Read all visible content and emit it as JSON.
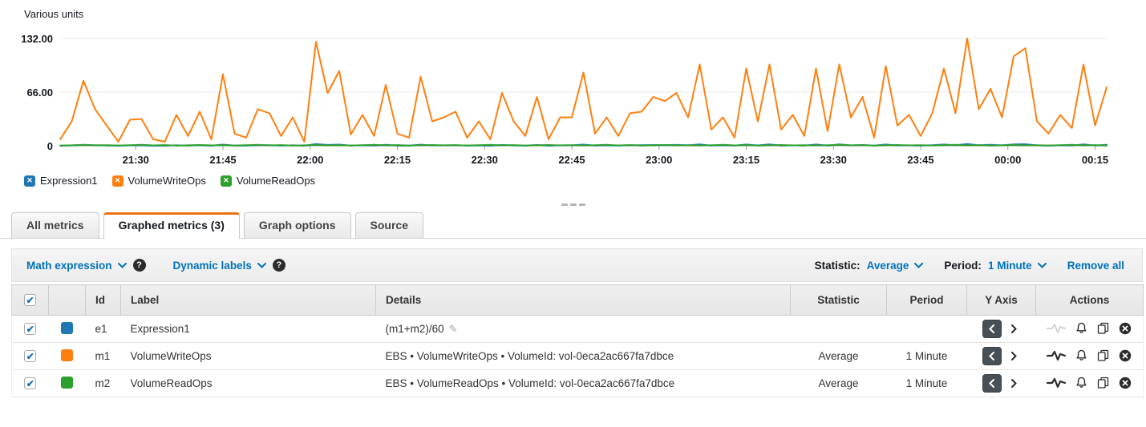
{
  "chart": {
    "units_label": "Various units"
  },
  "chart_data": {
    "type": "line",
    "title": "",
    "ylabel": "Various units",
    "ylim": [
      0,
      145
    ],
    "grid": true,
    "legend_position": "bottom-left",
    "y_gridlines": [
      0,
      66,
      132
    ],
    "y_tick_labels": [
      "0",
      "66.00",
      "132.00"
    ],
    "x_total_minutes": 180,
    "sample_interval_minutes": 2,
    "x_ticks": [
      {
        "minute": 13,
        "label": "21:30"
      },
      {
        "minute": 28,
        "label": "21:45"
      },
      {
        "minute": 43,
        "label": "22:00"
      },
      {
        "minute": 58,
        "label": "22:15"
      },
      {
        "minute": 73,
        "label": "22:30"
      },
      {
        "minute": 88,
        "label": "22:45"
      },
      {
        "minute": 103,
        "label": "23:00"
      },
      {
        "minute": 118,
        "label": "23:15"
      },
      {
        "minute": 133,
        "label": "23:30"
      },
      {
        "minute": 148,
        "label": "23:45"
      },
      {
        "minute": 163,
        "label": "00:00"
      },
      {
        "minute": 178,
        "label": "00:15"
      }
    ],
    "series": [
      {
        "name": "Expression1",
        "color": "#1f77b4",
        "values": [
          0.1,
          0.5,
          1.3,
          0.8,
          0.4,
          0.1,
          0.5,
          0.6,
          0.1,
          0.1,
          0.6,
          0.2,
          0.7,
          0.1,
          1.5,
          0.3,
          0.2,
          0.8,
          0.7,
          0.2,
          0.6,
          0.1,
          2.1,
          1.1,
          1.5,
          0.2,
          0.6,
          0.2,
          1.3,
          0.3,
          0.2,
          1.4,
          0.5,
          0.6,
          0.7,
          0.2,
          0.5,
          0.1,
          1.1,
          0.5,
          0.2,
          1.0,
          0.1,
          0.6,
          0.6,
          1.5,
          0.3,
          0.6,
          0.2,
          0.7,
          0.7,
          1.0,
          0.9,
          1.1,
          0.6,
          1.7,
          0.3,
          0.6,
          0.2,
          1.6,
          0.5,
          1.7,
          0.3,
          0.6,
          0.2,
          1.6,
          0.3,
          1.7,
          0.6,
          1.0,
          0.2,
          1.6,
          0.4,
          0.6,
          0.2,
          0.7,
          1.6,
          0.7,
          2.2,
          0.8,
          1.2,
          0.6,
          1.8,
          2.0,
          0.5,
          0.3,
          0.6,
          0.4,
          1.7,
          0.4,
          1.2
        ]
      },
      {
        "name": "VolumeWriteOps",
        "color": "#ff7f0e",
        "values": [
          8,
          30,
          80,
          45,
          25,
          5,
          32,
          33,
          8,
          5,
          38,
          12,
          42,
          8,
          88,
          15,
          10,
          45,
          40,
          12,
          35,
          5,
          128,
          65,
          92,
          14,
          38,
          12,
          75,
          15,
          10,
          85,
          30,
          35,
          42,
          10,
          30,
          8,
          65,
          30,
          12,
          60,
          8,
          35,
          35,
          90,
          15,
          35,
          12,
          40,
          42,
          60,
          55,
          65,
          35,
          100,
          20,
          35,
          10,
          95,
          30,
          100,
          20,
          38,
          12,
          95,
          18,
          100,
          35,
          60,
          10,
          98,
          25,
          38,
          12,
          40,
          95,
          40,
          132,
          45,
          70,
          35,
          110,
          120,
          30,
          15,
          38,
          22,
          100,
          25,
          72
        ]
      },
      {
        "name": "VolumeReadOps",
        "color": "#2ca02c",
        "values": [
          0.3,
          0.6,
          1.0,
          0.5,
          0.8,
          0.4,
          0.7,
          1.2,
          0.5,
          0.9,
          0.3,
          0.6,
          1.0,
          0.5,
          0.8,
          0.4,
          0.7,
          1.2,
          0.5,
          0.9,
          0.3,
          0.6,
          1.0,
          0.5,
          0.8,
          0.4,
          0.7,
          1.2,
          0.5,
          0.9,
          0.3,
          0.6,
          1.0,
          0.5,
          0.8,
          0.4,
          0.7,
          1.2,
          0.5,
          0.9,
          0.3,
          0.6,
          1.0,
          0.5,
          0.8,
          0.4,
          0.7,
          1.2,
          0.5,
          0.9,
          0.3,
          0.6,
          1.0,
          0.5,
          0.8,
          0.4,
          0.7,
          1.2,
          0.5,
          0.9,
          0.3,
          0.6,
          1.0,
          0.5,
          0.8,
          0.4,
          0.7,
          1.2,
          0.5,
          0.9,
          0.3,
          0.6,
          1.0,
          0.5,
          0.8,
          0.4,
          0.7,
          1.2,
          0.5,
          0.9,
          0.3,
          0.6,
          1.0,
          0.5,
          0.8,
          0.4,
          0.7,
          1.2,
          0.5,
          0.9,
          0.3
        ]
      }
    ]
  },
  "legend": {
    "items": [
      {
        "label": "Expression1",
        "color": "#1f77b4",
        "close_glyph": "✕"
      },
      {
        "label": "VolumeWriteOps",
        "color": "#ff7f0e",
        "close_glyph": "✕"
      },
      {
        "label": "VolumeReadOps",
        "color": "#2ca02c",
        "close_glyph": "✕"
      }
    ]
  },
  "tabs": [
    {
      "label": "All metrics"
    },
    {
      "label": "Graphed metrics (3)"
    },
    {
      "label": "Graph options"
    },
    {
      "label": "Source"
    }
  ],
  "toolbar": {
    "math_expression_label": "Math expression",
    "dynamic_labels_label": "Dynamic labels",
    "help_glyph": "?",
    "statistic_label": "Statistic:",
    "statistic_value": "Average",
    "period_label": "Period:",
    "period_value": "1 Minute",
    "remove_all_label": "Remove all"
  },
  "table": {
    "headers": {
      "id": "Id",
      "label": "Label",
      "details": "Details",
      "statistic": "Statistic",
      "period": "Period",
      "y_axis": "Y Axis",
      "actions": "Actions"
    },
    "check_glyph": "✔",
    "rows": [
      {
        "id": "e1",
        "label": "Expression1",
        "details": "(m1+m2)/60",
        "edit_glyph": "✎",
        "statistic": "",
        "period": "",
        "color": "#1f77b4"
      },
      {
        "id": "m1",
        "label": "VolumeWriteOps",
        "details": "EBS • VolumeWriteOps • VolumeId: vol-0eca2ac667fa7dbce",
        "statistic": "Average",
        "period": "1 Minute",
        "color": "#ff7f0e"
      },
      {
        "id": "m2",
        "label": "VolumeReadOps",
        "details": "EBS • VolumeReadOps • VolumeId: vol-0eca2ac667fa7dbce",
        "statistic": "Average",
        "period": "1 Minute",
        "color": "#2ca02c"
      }
    ]
  }
}
